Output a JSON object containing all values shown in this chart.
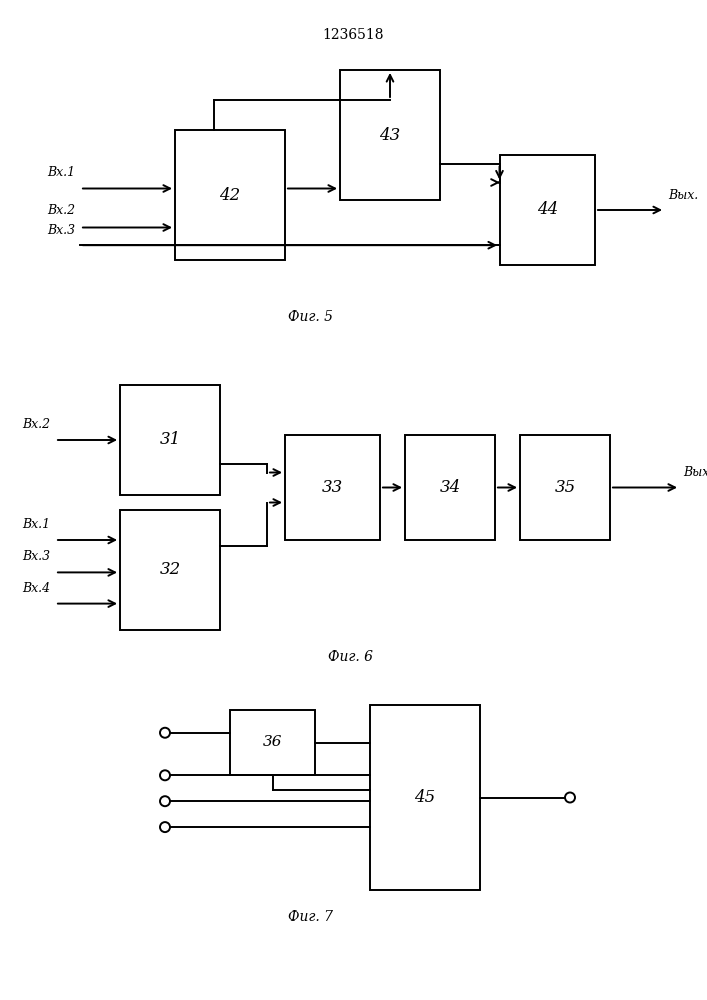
{
  "title": "1236518",
  "fig5_label": "Фиг. 5",
  "fig6_label": "Фиг. 6",
  "fig7_label": "Фиг. 7",
  "bg_color": "#ffffff"
}
